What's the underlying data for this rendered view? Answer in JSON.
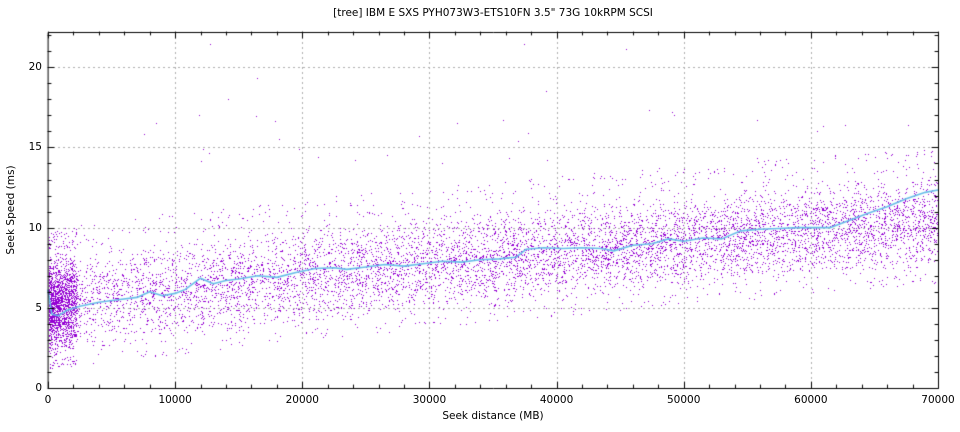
{
  "chart_data": {
    "type": "scatter",
    "title": "[tree] IBM E SXS PYH073W3-ETS10FN 3.5\" 73G 10kRPM SCSI",
    "xlabel": "Seek distance (MB)",
    "ylabel": "Seek Speed (ms)",
    "xlim": [
      0,
      70000
    ],
    "ylim": [
      0,
      22.2
    ],
    "x_ticks": [
      0,
      10000,
      20000,
      30000,
      40000,
      50000,
      60000,
      70000
    ],
    "y_ticks": [
      0,
      5,
      10,
      15,
      20
    ],
    "x_minor_step": 2000,
    "y_minor_step": 1,
    "grid": {
      "show": true,
      "style": "dashed",
      "color": "#aeaeae",
      "at": "major-ticks"
    },
    "legend": "none",
    "colors": {
      "scatter_dots": "#9400d3",
      "average_line": "#67bde8",
      "axis": "#000000",
      "text": "#000000",
      "background": "#ffffff"
    },
    "series": [
      {
        "name": "seek-samples",
        "type": "scatter",
        "color": "#9400d3",
        "marker": "1px dot",
        "scatter_model": {
          "description": "rising noisy band of ~10k single-pixel seek measurements",
          "seed": 20240101,
          "count_main": 8500,
          "count_near_zero_cluster": 1600,
          "near_zero_cluster_span_mb": 2300,
          "x_max": 70000,
          "band_lower": {
            "base": 1.75,
            "gain": 5.45,
            "exp": 0.85
          },
          "band_upper": {
            "base": 8.3,
            "gain": 5.3,
            "exp": 0.8
          },
          "halo_above_frac": 0.035,
          "halo_above_max": 1.5,
          "halo_below_frac": 0.02,
          "halo_below_max": 0.7
        },
        "outliers": [
          [
            7600,
            15.8
          ],
          [
            8500,
            16.5
          ],
          [
            11900,
            17.0
          ],
          [
            12800,
            21.4
          ],
          [
            12200,
            14.9
          ],
          [
            12700,
            14.6
          ],
          [
            12100,
            14.1
          ],
          [
            14200,
            18.0
          ],
          [
            16500,
            19.3
          ],
          [
            16400,
            16.9
          ],
          [
            17900,
            16.6
          ],
          [
            18200,
            15.5
          ],
          [
            19800,
            14.9
          ],
          [
            21300,
            14.4
          ],
          [
            24200,
            14.2
          ],
          [
            26700,
            14.5
          ],
          [
            29200,
            15.7
          ],
          [
            31000,
            14.0
          ],
          [
            32200,
            16.5
          ],
          [
            35800,
            16.7
          ],
          [
            36300,
            14.3
          ],
          [
            37500,
            21.4
          ],
          [
            37800,
            15.9
          ],
          [
            37000,
            15.4
          ],
          [
            39200,
            18.5
          ],
          [
            39300,
            14.2
          ],
          [
            45500,
            21.1
          ],
          [
            47300,
            17.3
          ],
          [
            49100,
            17.2
          ],
          [
            49300,
            17.0
          ],
          [
            55800,
            16.7
          ],
          [
            55800,
            14.3
          ],
          [
            60500,
            16.0
          ],
          [
            61000,
            16.3
          ],
          [
            62700,
            16.4
          ],
          [
            67700,
            16.4
          ]
        ]
      },
      {
        "name": "moving-average",
        "type": "line",
        "color": "#67bde8",
        "width": 1.6,
        "points": [
          [
            0,
            6.1
          ],
          [
            300,
            4.6
          ],
          [
            800,
            4.5
          ],
          [
            1500,
            4.85
          ],
          [
            2500,
            5.1
          ],
          [
            4000,
            5.35
          ],
          [
            5500,
            5.5
          ],
          [
            7000,
            5.65
          ],
          [
            8000,
            6.0
          ],
          [
            9000,
            5.75
          ],
          [
            10000,
            5.9
          ],
          [
            10800,
            6.15
          ],
          [
            12000,
            6.85
          ],
          [
            13000,
            6.5
          ],
          [
            14000,
            6.7
          ],
          [
            15000,
            6.8
          ],
          [
            16500,
            7.0
          ],
          [
            18000,
            6.9
          ],
          [
            19500,
            7.2
          ],
          [
            21000,
            7.45
          ],
          [
            22500,
            7.5
          ],
          [
            23500,
            7.4
          ],
          [
            25000,
            7.55
          ],
          [
            26500,
            7.7
          ],
          [
            28000,
            7.6
          ],
          [
            29500,
            7.75
          ],
          [
            31000,
            7.9
          ],
          [
            32500,
            7.85
          ],
          [
            34000,
            8.0
          ],
          [
            35500,
            8.05
          ],
          [
            36800,
            8.15
          ],
          [
            37600,
            8.65
          ],
          [
            39000,
            8.75
          ],
          [
            40500,
            8.7
          ],
          [
            42000,
            8.75
          ],
          [
            43500,
            8.7
          ],
          [
            44500,
            8.55
          ],
          [
            46000,
            8.9
          ],
          [
            47500,
            9.0
          ],
          [
            48800,
            9.3
          ],
          [
            50000,
            9.15
          ],
          [
            51500,
            9.35
          ],
          [
            53000,
            9.3
          ],
          [
            54500,
            9.8
          ],
          [
            56000,
            9.9
          ],
          [
            57500,
            9.95
          ],
          [
            59000,
            10.0
          ],
          [
            60000,
            10.0
          ],
          [
            61500,
            10.0
          ],
          [
            63000,
            10.45
          ],
          [
            64500,
            10.9
          ],
          [
            66000,
            11.3
          ],
          [
            67500,
            11.8
          ],
          [
            69000,
            12.2
          ],
          [
            70000,
            12.35
          ]
        ]
      }
    ]
  }
}
